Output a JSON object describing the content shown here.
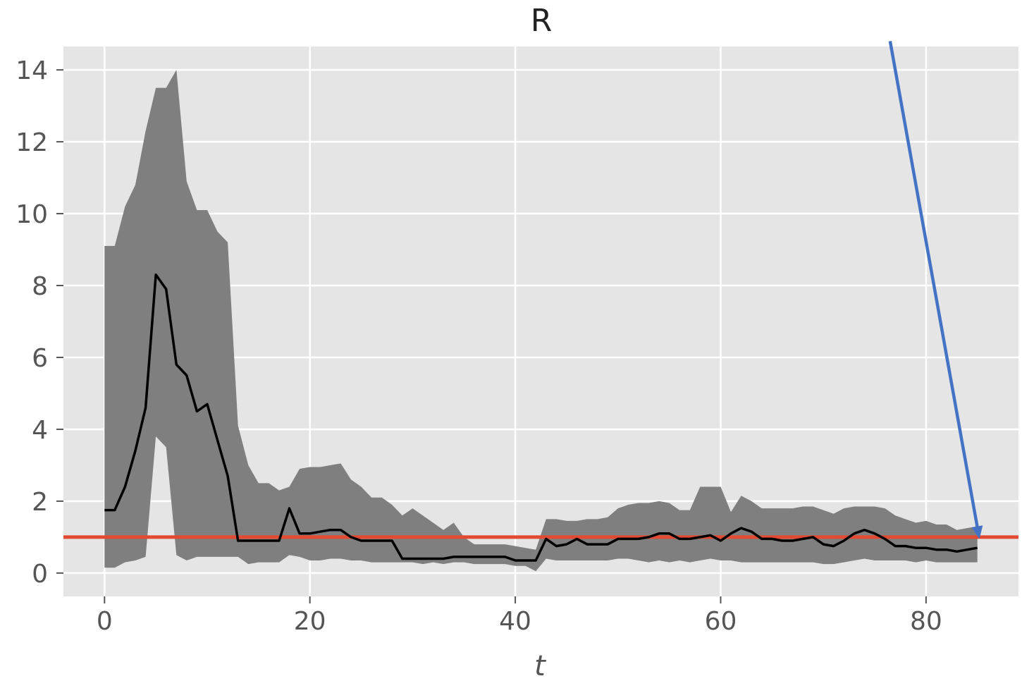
{
  "chart_data": {
    "type": "line",
    "title": "R",
    "xlabel": "t",
    "ylabel": "",
    "xlim": [
      -4,
      89
    ],
    "ylim": [
      -0.65,
      14.65
    ],
    "xticks": [
      0,
      20,
      40,
      60,
      80
    ],
    "yticks": [
      0,
      2,
      4,
      6,
      8,
      10,
      12,
      14
    ],
    "grid": true,
    "reference_line": {
      "y": 1.0,
      "color": "#e24a33"
    },
    "colors": {
      "median": "#000000",
      "band": "#7f7f7f",
      "background": "#e5e5e5",
      "grid": "#ffffff",
      "arrow": "#4472c4"
    },
    "arrow": {
      "from": [
        76.5,
        14.8
      ],
      "to": [
        85.2,
        0.95
      ]
    },
    "x": [
      0,
      1,
      2,
      3,
      4,
      5,
      6,
      7,
      8,
      9,
      10,
      11,
      12,
      13,
      14,
      15,
      16,
      17,
      18,
      19,
      20,
      21,
      22,
      23,
      24,
      25,
      26,
      27,
      28,
      29,
      30,
      31,
      32,
      33,
      34,
      35,
      36,
      37,
      38,
      39,
      40,
      41,
      42,
      43,
      44,
      45,
      46,
      47,
      48,
      49,
      50,
      51,
      52,
      53,
      54,
      55,
      56,
      57,
      58,
      59,
      60,
      61,
      62,
      63,
      64,
      65,
      66,
      67,
      68,
      69,
      70,
      71,
      72,
      73,
      74,
      75,
      76,
      77,
      78,
      79,
      80,
      81,
      82,
      83,
      84,
      85
    ],
    "series": [
      {
        "values": [
          1.75,
          1.75,
          2.4,
          3.4,
          4.6,
          8.3,
          7.9,
          5.8,
          5.5,
          4.5,
          4.7,
          3.7,
          2.7,
          0.9,
          0.9,
          0.9,
          0.9,
          0.9,
          1.8,
          1.1,
          1.1,
          1.15,
          1.2,
          1.2,
          1.0,
          0.9,
          0.9,
          0.9,
          0.9,
          0.4,
          0.4,
          0.4,
          0.4,
          0.4,
          0.45,
          0.45,
          0.45,
          0.45,
          0.45,
          0.45,
          0.35,
          0.35,
          0.35,
          0.95,
          0.75,
          0.8,
          0.95,
          0.8,
          0.8,
          0.8,
          0.95,
          0.95,
          0.95,
          1.0,
          1.1,
          1.1,
          0.95,
          0.95,
          1.0,
          1.05,
          0.9,
          1.1,
          1.25,
          1.15,
          0.95,
          0.95,
          0.9,
          0.9,
          0.95,
          1.0,
          0.8,
          0.75,
          0.9,
          1.1,
          1.2,
          1.1,
          0.95,
          0.75,
          0.75,
          0.7,
          0.7,
          0.65,
          0.65,
          0.6,
          0.65,
          0.7
        ]
      }
    ],
    "band": {
      "upper": [
        9.1,
        9.1,
        10.2,
        10.8,
        12.3,
        13.5,
        13.5,
        14.0,
        10.9,
        10.1,
        10.1,
        9.5,
        9.2,
        4.1,
        3.0,
        2.5,
        2.5,
        2.3,
        2.4,
        2.9,
        2.95,
        2.95,
        3.0,
        3.05,
        2.6,
        2.4,
        2.1,
        2.1,
        1.9,
        1.6,
        1.8,
        1.6,
        1.4,
        1.2,
        1.4,
        1.0,
        0.8,
        0.8,
        0.8,
        0.8,
        0.75,
        0.7,
        0.65,
        1.5,
        1.5,
        1.45,
        1.45,
        1.5,
        1.5,
        1.55,
        1.8,
        1.9,
        1.95,
        1.95,
        2.0,
        1.95,
        1.75,
        1.75,
        2.4,
        2.4,
        2.4,
        1.7,
        2.15,
        2.0,
        1.8,
        1.8,
        1.8,
        1.8,
        1.85,
        1.85,
        1.75,
        1.65,
        1.8,
        1.85,
        1.85,
        1.85,
        1.8,
        1.6,
        1.5,
        1.4,
        1.45,
        1.35,
        1.35,
        1.2,
        1.25,
        1.3
      ],
      "lower": [
        0.15,
        0.15,
        0.3,
        0.35,
        0.45,
        3.8,
        3.5,
        0.5,
        0.35,
        0.45,
        0.45,
        0.45,
        0.45,
        0.45,
        0.25,
        0.3,
        0.3,
        0.3,
        0.5,
        0.45,
        0.35,
        0.35,
        0.4,
        0.4,
        0.35,
        0.35,
        0.3,
        0.3,
        0.3,
        0.3,
        0.3,
        0.25,
        0.3,
        0.25,
        0.3,
        0.3,
        0.25,
        0.25,
        0.25,
        0.25,
        0.2,
        0.2,
        0.05,
        0.4,
        0.35,
        0.35,
        0.35,
        0.35,
        0.35,
        0.35,
        0.4,
        0.4,
        0.35,
        0.3,
        0.35,
        0.3,
        0.35,
        0.3,
        0.35,
        0.4,
        0.35,
        0.35,
        0.3,
        0.3,
        0.3,
        0.3,
        0.3,
        0.3,
        0.3,
        0.3,
        0.25,
        0.25,
        0.3,
        0.35,
        0.4,
        0.35,
        0.35,
        0.35,
        0.35,
        0.3,
        0.35,
        0.3,
        0.3,
        0.3,
        0.3,
        0.3
      ]
    }
  }
}
